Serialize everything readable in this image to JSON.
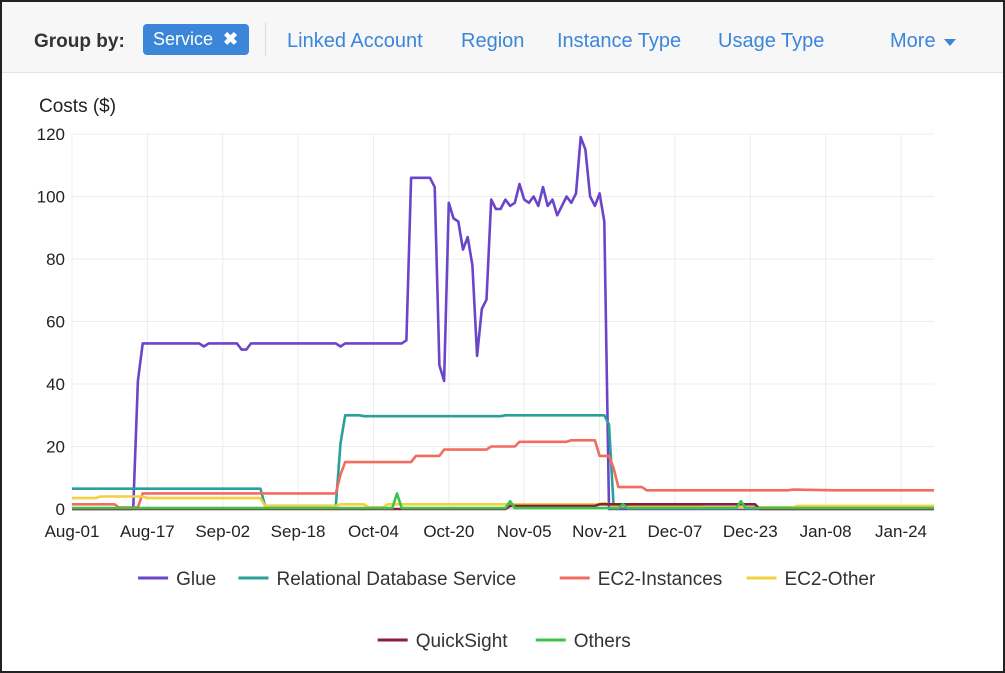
{
  "toolbar": {
    "group_by_label": "Group by:",
    "chip_label": "Service",
    "chip_remove_icon": "close-icon",
    "tabs": [
      "Linked Account",
      "Region",
      "Instance Type",
      "Usage Type"
    ],
    "more_label": "More",
    "more_icon": "caret-down-icon"
  },
  "chart_data": {
    "type": "line",
    "ylabel": "Costs ($)",
    "ylim": [
      0,
      120
    ],
    "yticks": [
      0,
      20,
      40,
      60,
      80,
      100,
      120
    ],
    "x_tick_labels": [
      "Aug-01",
      "Aug-17",
      "Sep-02",
      "Sep-18",
      "Oct-04",
      "Oct-20",
      "Nov-05",
      "Nov-21",
      "Dec-07",
      "Dec-23",
      "Jan-08",
      "Jan-24"
    ],
    "x_start": "2023-08-01",
    "x_end": "2024-01-31",
    "grid": true,
    "legend_position": "bottom",
    "series": [
      {
        "name": "Glue",
        "color": "#6a45c9",
        "points": [
          [
            "2023-08-01",
            0
          ],
          [
            "2023-08-14",
            0
          ],
          [
            "2023-08-15",
            41
          ],
          [
            "2023-08-16",
            53
          ],
          [
            "2023-08-28",
            53
          ],
          [
            "2023-08-29",
            52
          ],
          [
            "2023-08-30",
            53
          ],
          [
            "2023-09-05",
            53
          ],
          [
            "2023-09-06",
            51
          ],
          [
            "2023-09-07",
            51
          ],
          [
            "2023-09-08",
            53
          ],
          [
            "2023-09-26",
            53
          ],
          [
            "2023-09-27",
            52
          ],
          [
            "2023-09-28",
            53
          ],
          [
            "2023-10-10",
            53
          ],
          [
            "2023-10-11",
            54
          ],
          [
            "2023-10-12",
            106
          ],
          [
            "2023-10-16",
            106
          ],
          [
            "2023-10-17",
            103
          ],
          [
            "2023-10-18",
            46
          ],
          [
            "2023-10-19",
            41
          ],
          [
            "2023-10-20",
            98
          ],
          [
            "2023-10-21",
            93
          ],
          [
            "2023-10-22",
            92
          ],
          [
            "2023-10-23",
            83
          ],
          [
            "2023-10-24",
            87
          ],
          [
            "2023-10-25",
            78
          ],
          [
            "2023-10-26",
            49
          ],
          [
            "2023-10-27",
            64
          ],
          [
            "2023-10-28",
            67
          ],
          [
            "2023-10-29",
            99
          ],
          [
            "2023-10-30",
            96
          ],
          [
            "2023-10-31",
            96
          ],
          [
            "2023-11-01",
            99
          ],
          [
            "2023-11-02",
            97
          ],
          [
            "2023-11-03",
            98
          ],
          [
            "2023-11-04",
            104
          ],
          [
            "2023-11-05",
            99
          ],
          [
            "2023-11-06",
            98
          ],
          [
            "2023-11-07",
            100
          ],
          [
            "2023-11-08",
            97
          ],
          [
            "2023-11-09",
            103
          ],
          [
            "2023-11-10",
            97
          ],
          [
            "2023-11-11",
            99
          ],
          [
            "2023-11-12",
            94
          ],
          [
            "2023-11-13",
            97
          ],
          [
            "2023-11-14",
            100
          ],
          [
            "2023-11-15",
            98
          ],
          [
            "2023-11-16",
            101
          ],
          [
            "2023-11-17",
            119
          ],
          [
            "2023-11-18",
            115
          ],
          [
            "2023-11-19",
            100
          ],
          [
            "2023-11-20",
            97
          ],
          [
            "2023-11-21",
            101
          ],
          [
            "2023-11-22",
            92
          ],
          [
            "2023-11-23",
            0
          ],
          [
            "2024-01-31",
            0
          ]
        ]
      },
      {
        "name": "Relational Database Service",
        "color": "#2aa198",
        "points": [
          [
            "2023-08-01",
            6.5
          ],
          [
            "2023-09-10",
            6.5
          ],
          [
            "2023-09-11",
            1
          ],
          [
            "2023-09-26",
            1
          ],
          [
            "2023-09-27",
            21
          ],
          [
            "2023-09-28",
            30
          ],
          [
            "2023-10-01",
            30
          ],
          [
            "2023-10-02",
            29.7
          ],
          [
            "2023-10-31",
            29.7
          ],
          [
            "2023-11-01",
            30
          ],
          [
            "2023-11-22",
            30
          ],
          [
            "2023-11-23",
            27
          ],
          [
            "2023-11-24",
            0.5
          ],
          [
            "2024-01-31",
            0.5
          ]
        ]
      },
      {
        "name": "EC2-Instances",
        "color": "#f26c5f",
        "points": [
          [
            "2023-08-01",
            1.5
          ],
          [
            "2023-08-10",
            1.5
          ],
          [
            "2023-08-11",
            0.5
          ],
          [
            "2023-08-15",
            0.5
          ],
          [
            "2023-08-16",
            5
          ],
          [
            "2023-09-10",
            5
          ],
          [
            "2023-09-11",
            5
          ],
          [
            "2023-09-26",
            5
          ],
          [
            "2023-09-27",
            11
          ],
          [
            "2023-09-28",
            15
          ],
          [
            "2023-10-12",
            15
          ],
          [
            "2023-10-13",
            17
          ],
          [
            "2023-10-18",
            17
          ],
          [
            "2023-10-19",
            19
          ],
          [
            "2023-10-28",
            19
          ],
          [
            "2023-10-29",
            20
          ],
          [
            "2023-11-03",
            20
          ],
          [
            "2023-11-04",
            21.5
          ],
          [
            "2023-11-14",
            21.5
          ],
          [
            "2023-11-15",
            22
          ],
          [
            "2023-11-20",
            22
          ],
          [
            "2023-11-21",
            17
          ],
          [
            "2023-11-23",
            17
          ],
          [
            "2023-11-24",
            13
          ],
          [
            "2023-11-25",
            7
          ],
          [
            "2023-11-30",
            7
          ],
          [
            "2023-12-01",
            6
          ],
          [
            "2023-12-31",
            6
          ],
          [
            "2024-01-01",
            6.2
          ],
          [
            "2024-01-10",
            6
          ],
          [
            "2024-01-31",
            6
          ]
        ]
      },
      {
        "name": "EC2-Other",
        "color": "#f4d03f",
        "points": [
          [
            "2023-08-01",
            3.5
          ],
          [
            "2023-08-06",
            3.5
          ],
          [
            "2023-08-07",
            4
          ],
          [
            "2023-08-16",
            4
          ],
          [
            "2023-08-17",
            3.5
          ],
          [
            "2023-09-10",
            3.5
          ],
          [
            "2023-09-11",
            1
          ],
          [
            "2023-09-26",
            1
          ],
          [
            "2023-09-27",
            1.5
          ],
          [
            "2023-10-02",
            1.5
          ],
          [
            "2023-10-03",
            0.5
          ],
          [
            "2023-10-06",
            0.5
          ],
          [
            "2023-10-07",
            1.5
          ],
          [
            "2023-11-21",
            1.5
          ],
          [
            "2023-11-22",
            2
          ],
          [
            "2023-11-24",
            1
          ],
          [
            "2023-12-12",
            1
          ],
          [
            "2023-12-13",
            0.5
          ],
          [
            "2024-01-01",
            0.5
          ],
          [
            "2024-01-02",
            1
          ],
          [
            "2024-01-31",
            1
          ]
        ]
      },
      {
        "name": "QuickSight",
        "color": "#8b1d3f",
        "points": [
          [
            "2023-08-01",
            0
          ],
          [
            "2023-11-01",
            0
          ],
          [
            "2023-11-02",
            1
          ],
          [
            "2023-11-20",
            1
          ],
          [
            "2023-11-21",
            1.5
          ],
          [
            "2023-12-24",
            1.5
          ],
          [
            "2023-12-25",
            0
          ],
          [
            "2024-01-31",
            0
          ]
        ]
      },
      {
        "name": "Others",
        "color": "#3cc44a",
        "points": [
          [
            "2023-08-01",
            0.3
          ],
          [
            "2023-10-08",
            0.3
          ],
          [
            "2023-10-09",
            5
          ],
          [
            "2023-10-10",
            0.3
          ],
          [
            "2023-11-01",
            0.3
          ],
          [
            "2023-11-02",
            2.5
          ],
          [
            "2023-11-03",
            0.3
          ],
          [
            "2023-11-25",
            0.3
          ],
          [
            "2023-11-26",
            1.5
          ],
          [
            "2023-11-27",
            0.3
          ],
          [
            "2023-12-20",
            0.3
          ],
          [
            "2023-12-21",
            2.5
          ],
          [
            "2023-12-22",
            0.3
          ],
          [
            "2024-01-31",
            0.3
          ]
        ]
      }
    ]
  }
}
